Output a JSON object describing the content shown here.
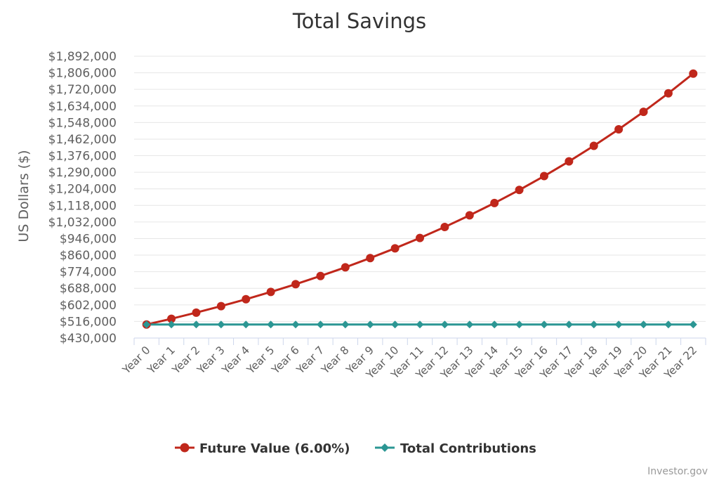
{
  "chart_data": {
    "type": "line",
    "title": "Total Savings",
    "ylabel": "US Dollars ($)",
    "xlabel": "",
    "categories": [
      "Year 0",
      "Year 1",
      "Year 2",
      "Year 3",
      "Year 4",
      "Year 5",
      "Year 6",
      "Year 7",
      "Year 8",
      "Year 9",
      "Year 10",
      "Year 11",
      "Year 12",
      "Year 13",
      "Year 14",
      "Year 15",
      "Year 16",
      "Year 17",
      "Year 18",
      "Year 19",
      "Year 20",
      "Year 21",
      "Year 22"
    ],
    "ylim": [
      430000,
      1892000
    ],
    "yticks": [
      430000,
      516000,
      602000,
      688000,
      774000,
      860000,
      946000,
      1032000,
      1118000,
      1204000,
      1290000,
      1376000,
      1462000,
      1548000,
      1634000,
      1720000,
      1806000,
      1892000
    ],
    "ytick_labels": [
      "$430,000",
      "$516,000",
      "$602,000",
      "$688,000",
      "$774,000",
      "$860,000",
      "$946,000",
      "$1,032,000",
      "$1,118,000",
      "$1,204,000",
      "$1,290,000",
      "$1,376,000",
      "$1,462,000",
      "$1,548,000",
      "$1,634,000",
      "$1,720,000",
      "$1,806,000",
      "$1,892,000"
    ],
    "grid": true,
    "legend_position": "bottom-center",
    "series": [
      {
        "name": "Future Value (6.00%)",
        "color": "#c0271b",
        "marker": "circle",
        "values": [
          500000,
          530000,
          561800,
          595508,
          631238,
          669113,
          709260,
          751815,
          796924,
          844739,
          895424,
          949149,
          1006098,
          1066464,
          1130452,
          1198279,
          1270176,
          1346387,
          1427170,
          1512800,
          1603568,
          1699782,
          1801769
        ]
      },
      {
        "name": "Total Contributions",
        "color": "#2b9693",
        "marker": "diamond",
        "values": [
          500000,
          500000,
          500000,
          500000,
          500000,
          500000,
          500000,
          500000,
          500000,
          500000,
          500000,
          500000,
          500000,
          500000,
          500000,
          500000,
          500000,
          500000,
          500000,
          500000,
          500000,
          500000,
          500000
        ]
      }
    ]
  },
  "credit": "Investor.gov"
}
